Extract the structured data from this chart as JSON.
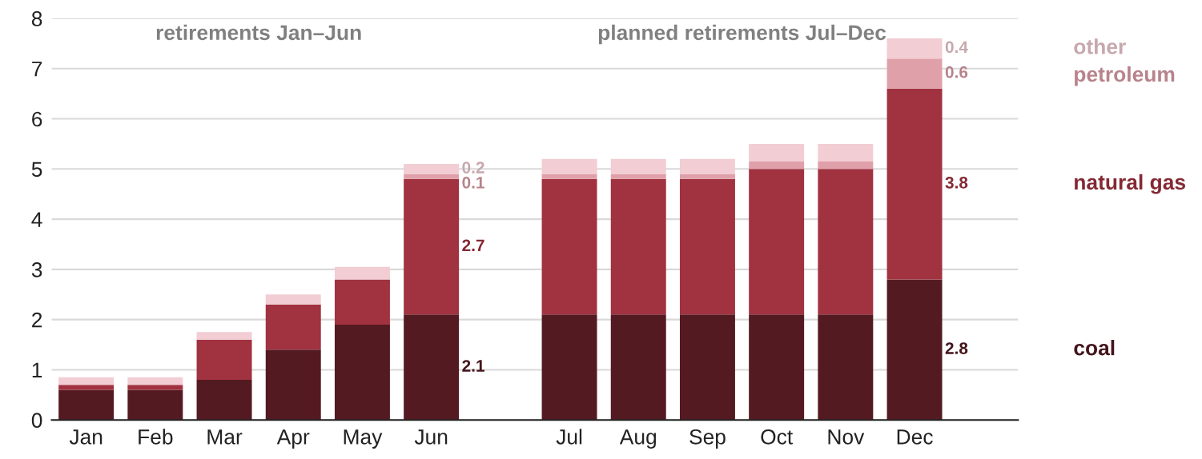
{
  "chart_data": {
    "type": "bar",
    "stacked": true,
    "categories": [
      "Jan",
      "Feb",
      "Mar",
      "Apr",
      "May",
      "Jun",
      null,
      "Jul",
      "Aug",
      "Sep",
      "Oct",
      "Nov",
      "Dec"
    ],
    "series": [
      {
        "name": "coal",
        "color": "#541a22",
        "values": [
          0.6,
          0.6,
          0.8,
          1.4,
          1.9,
          2.1,
          null,
          2.1,
          2.1,
          2.1,
          2.1,
          2.1,
          2.8
        ],
        "value_labels": [
          null,
          null,
          null,
          null,
          null,
          "2.1",
          null,
          null,
          null,
          null,
          null,
          null,
          "2.8"
        ]
      },
      {
        "name": "natural gas",
        "color": "#a13240",
        "values": [
          0.1,
          0.1,
          0.8,
          0.9,
          0.9,
          2.7,
          null,
          2.7,
          2.7,
          2.7,
          2.9,
          2.9,
          3.8
        ],
        "value_labels": [
          null,
          null,
          null,
          null,
          null,
          "2.7",
          null,
          null,
          null,
          null,
          null,
          null,
          "3.8"
        ]
      },
      {
        "name": "petroleum",
        "color": "#e0a0aa",
        "values": [
          0,
          0,
          0,
          0,
          0,
          0.1,
          null,
          0.1,
          0.1,
          0.1,
          0.15,
          0.15,
          0.6
        ],
        "value_labels": [
          null,
          null,
          null,
          null,
          null,
          "0.1",
          null,
          null,
          null,
          null,
          null,
          null,
          "0.6"
        ]
      },
      {
        "name": "other",
        "color": "#f2cdd3",
        "values": [
          0.15,
          0.15,
          0.15,
          0.2,
          0.25,
          0.2,
          null,
          0.3,
          0.3,
          0.3,
          0.35,
          0.35,
          0.4
        ],
        "value_labels": [
          null,
          null,
          null,
          null,
          null,
          "0.2",
          null,
          null,
          null,
          null,
          null,
          null,
          "0.4"
        ]
      }
    ],
    "ylim": [
      0,
      8
    ],
    "yticks": [
      0,
      1,
      2,
      3,
      4,
      5,
      6,
      7,
      8
    ],
    "grid": "y",
    "legend": "right",
    "annotations": [
      "retirements Jan–Jun",
      "planned retirements Jul–Dec"
    ]
  }
}
